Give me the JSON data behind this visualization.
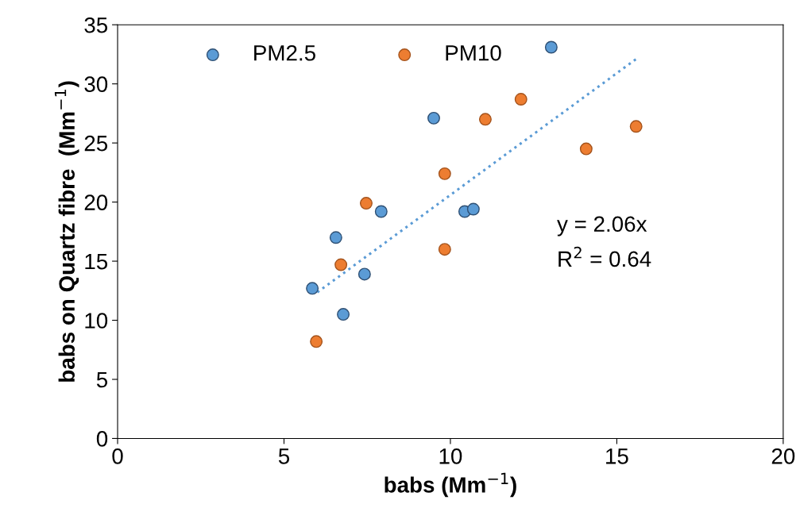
{
  "chart_data": {
    "type": "scatter",
    "xlabel": "babs (Mm$^{−1}$)",
    "ylabel": "babs on Quartz fibre  (Mm$^{−1}$)",
    "xlim": [
      0,
      20
    ],
    "xticks": [
      0,
      5,
      10,
      15,
      20
    ],
    "ylim": [
      0,
      35
    ],
    "yticks": [
      0,
      5,
      10,
      15,
      20,
      25,
      30,
      35
    ],
    "grid": false,
    "legend": "top left",
    "marker": "circle",
    "series": [
      {
        "name": "PM2.5",
        "color": "#5b9bd5",
        "x": [
          5.85,
          6.56,
          6.78,
          7.42,
          7.92,
          9.5,
          10.43,
          10.69,
          13.03
        ],
        "values": [
          12.7,
          17.0,
          10.5,
          13.9,
          19.2,
          27.1,
          19.2,
          19.4,
          33.1
        ]
      },
      {
        "name": "PM10",
        "color": "#ed7d31",
        "x": [
          5.97,
          6.71,
          7.47,
          9.83,
          9.83,
          11.05,
          12.12,
          14.08,
          15.58
        ],
        "values": [
          8.2,
          14.7,
          19.9,
          22.4,
          16.0,
          27.0,
          28.7,
          24.5,
          26.4
        ]
      },
      {
        "type": "line",
        "color": "#5b9bd5",
        "line_style": "dotted",
        "marker": "none",
        "x": [
          6.0,
          15.6
        ],
        "values": [
          12.36,
          32.14
        ]
      }
    ],
    "annotations": [
      "y = 2.06x",
      "R$^{2}$ = 0.64"
    ]
  }
}
